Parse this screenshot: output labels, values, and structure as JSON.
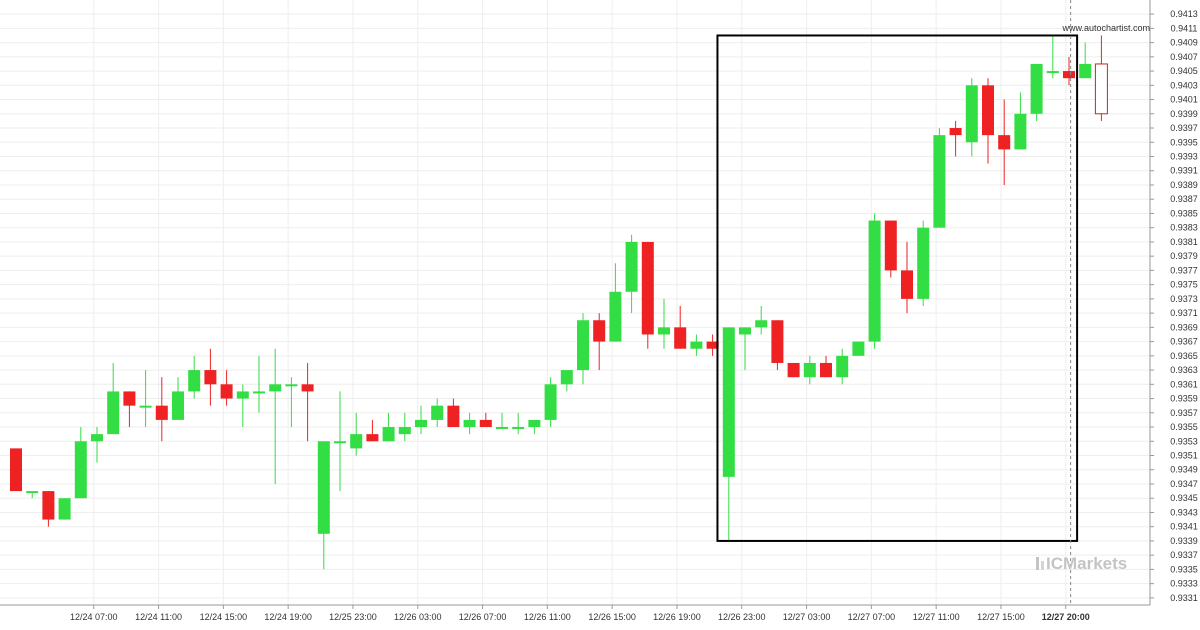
{
  "chart_data": {
    "type": "candlestick",
    "watermark": "www.autochartist.com",
    "brand": "ICMarkets",
    "colors": {
      "up": "#33dd44",
      "down": "#ee2222",
      "grid": "#eeeeee",
      "box": "#000000",
      "current": "#cc2222"
    },
    "y_range": [
      0.933,
      0.9414
    ],
    "y_ticks": [
      "0.9331",
      "0.9333",
      "0.9335",
      "0.9337",
      "0.9339",
      "0.9341",
      "0.9343",
      "0.9345",
      "0.9347",
      "0.9349",
      "0.9351",
      "0.9353",
      "0.9355",
      "0.9357",
      "0.9359",
      "0.9361",
      "0.9363",
      "0.9365",
      "0.9367",
      "0.9369",
      "0.9371",
      "0.9373",
      "0.9375",
      "0.9377",
      "0.9379",
      "0.9381",
      "0.9383",
      "0.9385",
      "0.9387",
      "0.9389",
      "0.9391",
      "0.9393",
      "0.9395",
      "0.9397",
      "0.9399",
      "0.9401",
      "0.9403",
      "0.9405",
      "0.9407",
      "0.9409",
      "0.9411",
      "0.9413"
    ],
    "x_ticks": [
      {
        "index": 4.8,
        "label": "12/24 07:00"
      },
      {
        "index": 8.8,
        "label": "12/24 11:00"
      },
      {
        "index": 12.8,
        "label": "12/24 15:00"
      },
      {
        "index": 16.8,
        "label": "12/24 19:00"
      },
      {
        "index": 20.8,
        "label": "12/25 23:00"
      },
      {
        "index": 24.8,
        "label": "12/26 03:00"
      },
      {
        "index": 28.8,
        "label": "12/26 07:00"
      },
      {
        "index": 32.8,
        "label": "12/26 11:00"
      },
      {
        "index": 36.8,
        "label": "12/26 15:00"
      },
      {
        "index": 40.8,
        "label": "12/26 19:00"
      },
      {
        "index": 44.8,
        "label": "12/26 23:00"
      },
      {
        "index": 48.8,
        "label": "12/27 03:00"
      },
      {
        "index": 52.8,
        "label": "12/27 07:00"
      },
      {
        "index": 56.8,
        "label": "12/27 11:00"
      },
      {
        "index": 60.8,
        "label": "12/27 15:00"
      },
      {
        "index": 64.8,
        "label": "12/27 20:00",
        "bold": true
      }
    ],
    "candles": [
      [
        0.9352,
        0.9352,
        0.9346,
        0.9346
      ],
      [
        0.9346,
        0.9346,
        0.9345,
        0.9346
      ],
      [
        0.9346,
        0.9346,
        0.9341,
        0.9342
      ],
      [
        0.9342,
        0.9345,
        0.9342,
        0.9345
      ],
      [
        0.9345,
        0.9355,
        0.9345,
        0.9353
      ],
      [
        0.9353,
        0.9355,
        0.935,
        0.9354
      ],
      [
        0.9354,
        0.9364,
        0.9354,
        0.936
      ],
      [
        0.936,
        0.936,
        0.9355,
        0.9358
      ],
      [
        0.9358,
        0.9363,
        0.9355,
        0.9358
      ],
      [
        0.9358,
        0.9362,
        0.9353,
        0.9356
      ],
      [
        0.9356,
        0.9362,
        0.9356,
        0.936
      ],
      [
        0.936,
        0.9365,
        0.9359,
        0.9363
      ],
      [
        0.9363,
        0.9366,
        0.9358,
        0.9361
      ],
      [
        0.9361,
        0.9363,
        0.9358,
        0.9359
      ],
      [
        0.9359,
        0.9361,
        0.9355,
        0.936
      ],
      [
        0.936,
        0.9365,
        0.9357,
        0.936
      ],
      [
        0.936,
        0.9366,
        0.9347,
        0.9361
      ],
      [
        0.9361,
        0.9362,
        0.9355,
        0.9361
      ],
      [
        0.9361,
        0.9364,
        0.9353,
        0.936
      ],
      [
        0.934,
        0.9353,
        0.9335,
        0.9353
      ],
      [
        0.9353,
        0.936,
        0.9346,
        0.9353
      ],
      [
        0.9352,
        0.9357,
        0.9351,
        0.9354
      ],
      [
        0.9354,
        0.9356,
        0.9353,
        0.9353
      ],
      [
        0.9353,
        0.9357,
        0.9353,
        0.9355
      ],
      [
        0.9354,
        0.9357,
        0.9353,
        0.9355
      ],
      [
        0.9355,
        0.9358,
        0.9354,
        0.9356
      ],
      [
        0.9356,
        0.9359,
        0.9355,
        0.9358
      ],
      [
        0.9358,
        0.9359,
        0.9355,
        0.9355
      ],
      [
        0.9355,
        0.9357,
        0.9354,
        0.9356
      ],
      [
        0.9356,
        0.9357,
        0.9355,
        0.9355
      ],
      [
        0.9355,
        0.9357,
        0.9355,
        0.9355
      ],
      [
        0.9355,
        0.9357,
        0.9354,
        0.9355
      ],
      [
        0.9355,
        0.9356,
        0.9354,
        0.9356
      ],
      [
        0.9356,
        0.9362,
        0.9355,
        0.9361
      ],
      [
        0.9361,
        0.9363,
        0.936,
        0.9363
      ],
      [
        0.9363,
        0.9371,
        0.9361,
        0.937
      ],
      [
        0.937,
        0.9371,
        0.9363,
        0.9367
      ],
      [
        0.9367,
        0.9378,
        0.9367,
        0.9374
      ],
      [
        0.9374,
        0.9382,
        0.9371,
        0.9381
      ],
      [
        0.9381,
        0.9381,
        0.9366,
        0.9368
      ],
      [
        0.9368,
        0.9373,
        0.9366,
        0.9369
      ],
      [
        0.9369,
        0.9372,
        0.9366,
        0.9366
      ],
      [
        0.9366,
        0.9368,
        0.9365,
        0.9367
      ],
      [
        0.9367,
        0.9368,
        0.9365,
        0.9366
      ],
      [
        0.9348,
        0.9369,
        0.9339,
        0.9369
      ],
      [
        0.9368,
        0.9369,
        0.9363,
        0.9369
      ],
      [
        0.9369,
        0.9372,
        0.9368,
        0.937
      ],
      [
        0.937,
        0.937,
        0.9363,
        0.9364
      ],
      [
        0.9364,
        0.9364,
        0.9362,
        0.9362
      ],
      [
        0.9362,
        0.9365,
        0.9361,
        0.9364
      ],
      [
        0.9364,
        0.9365,
        0.9362,
        0.9362
      ],
      [
        0.9362,
        0.9366,
        0.9361,
        0.9365
      ],
      [
        0.9365,
        0.9367,
        0.9365,
        0.9367
      ],
      [
        0.9367,
        0.9385,
        0.9366,
        0.9384
      ],
      [
        0.9384,
        0.9384,
        0.9376,
        0.9377
      ],
      [
        0.9377,
        0.9381,
        0.9371,
        0.9373
      ],
      [
        0.9373,
        0.9384,
        0.9372,
        0.9383
      ],
      [
        0.9383,
        0.9397,
        0.9383,
        0.9396
      ],
      [
        0.9397,
        0.9398,
        0.9393,
        0.9396
      ],
      [
        0.9395,
        0.9404,
        0.9393,
        0.9403
      ],
      [
        0.9403,
        0.9404,
        0.9392,
        0.9396
      ],
      [
        0.9396,
        0.9401,
        0.9389,
        0.9394
      ],
      [
        0.9394,
        0.9402,
        0.9394,
        0.9399
      ],
      [
        0.9399,
        0.9406,
        0.9398,
        0.9406
      ],
      [
        0.9405,
        0.941,
        0.9404,
        0.9405
      ],
      [
        0.9405,
        0.9407,
        0.9403,
        0.9404
      ],
      [
        0.9404,
        0.9409,
        0.9404,
        0.9406
      ],
      [
        0.9406,
        0.941,
        0.9398,
        0.9399
      ]
    ],
    "pattern_box": {
      "from_index": 43.3,
      "to_index": 65.5,
      "low": 0.9339,
      "high": 0.941
    },
    "current_line_index": 65.1
  }
}
